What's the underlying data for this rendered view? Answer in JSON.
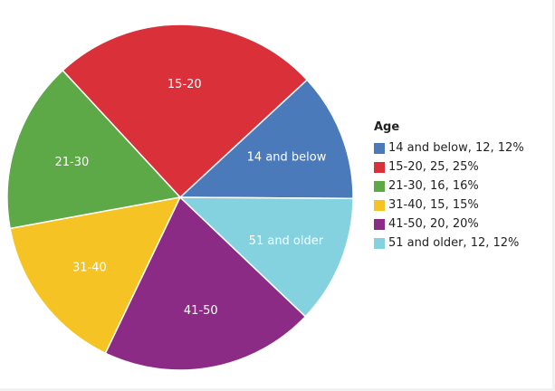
{
  "chart_data": {
    "type": "pie",
    "legend_title": "Age",
    "legend_position": "right",
    "slices": [
      {
        "label": "14 and below",
        "value": 12,
        "percent": "12%",
        "legend": "14 and below, 12, 12%",
        "color": "#4a7ab9"
      },
      {
        "label": "15-20",
        "value": 25,
        "percent": "25%",
        "legend": "15-20, 25, 25%",
        "color": "#d9303a"
      },
      {
        "label": "21-30",
        "value": 16,
        "percent": "16%",
        "legend": "21-30, 16, 16%",
        "color": "#5da947"
      },
      {
        "label": "31-40",
        "value": 15,
        "percent": "15%",
        "legend": "31-40, 15, 15%",
        "color": "#f5c324"
      },
      {
        "label": "41-50",
        "value": 20,
        "percent": "20%",
        "legend": "41-50, 20, 20%",
        "color": "#8c2b86"
      },
      {
        "label": "51 and older",
        "value": 12,
        "percent": "12%",
        "legend": "51 and older, 12, 12%",
        "color": "#84d2df"
      }
    ]
  }
}
